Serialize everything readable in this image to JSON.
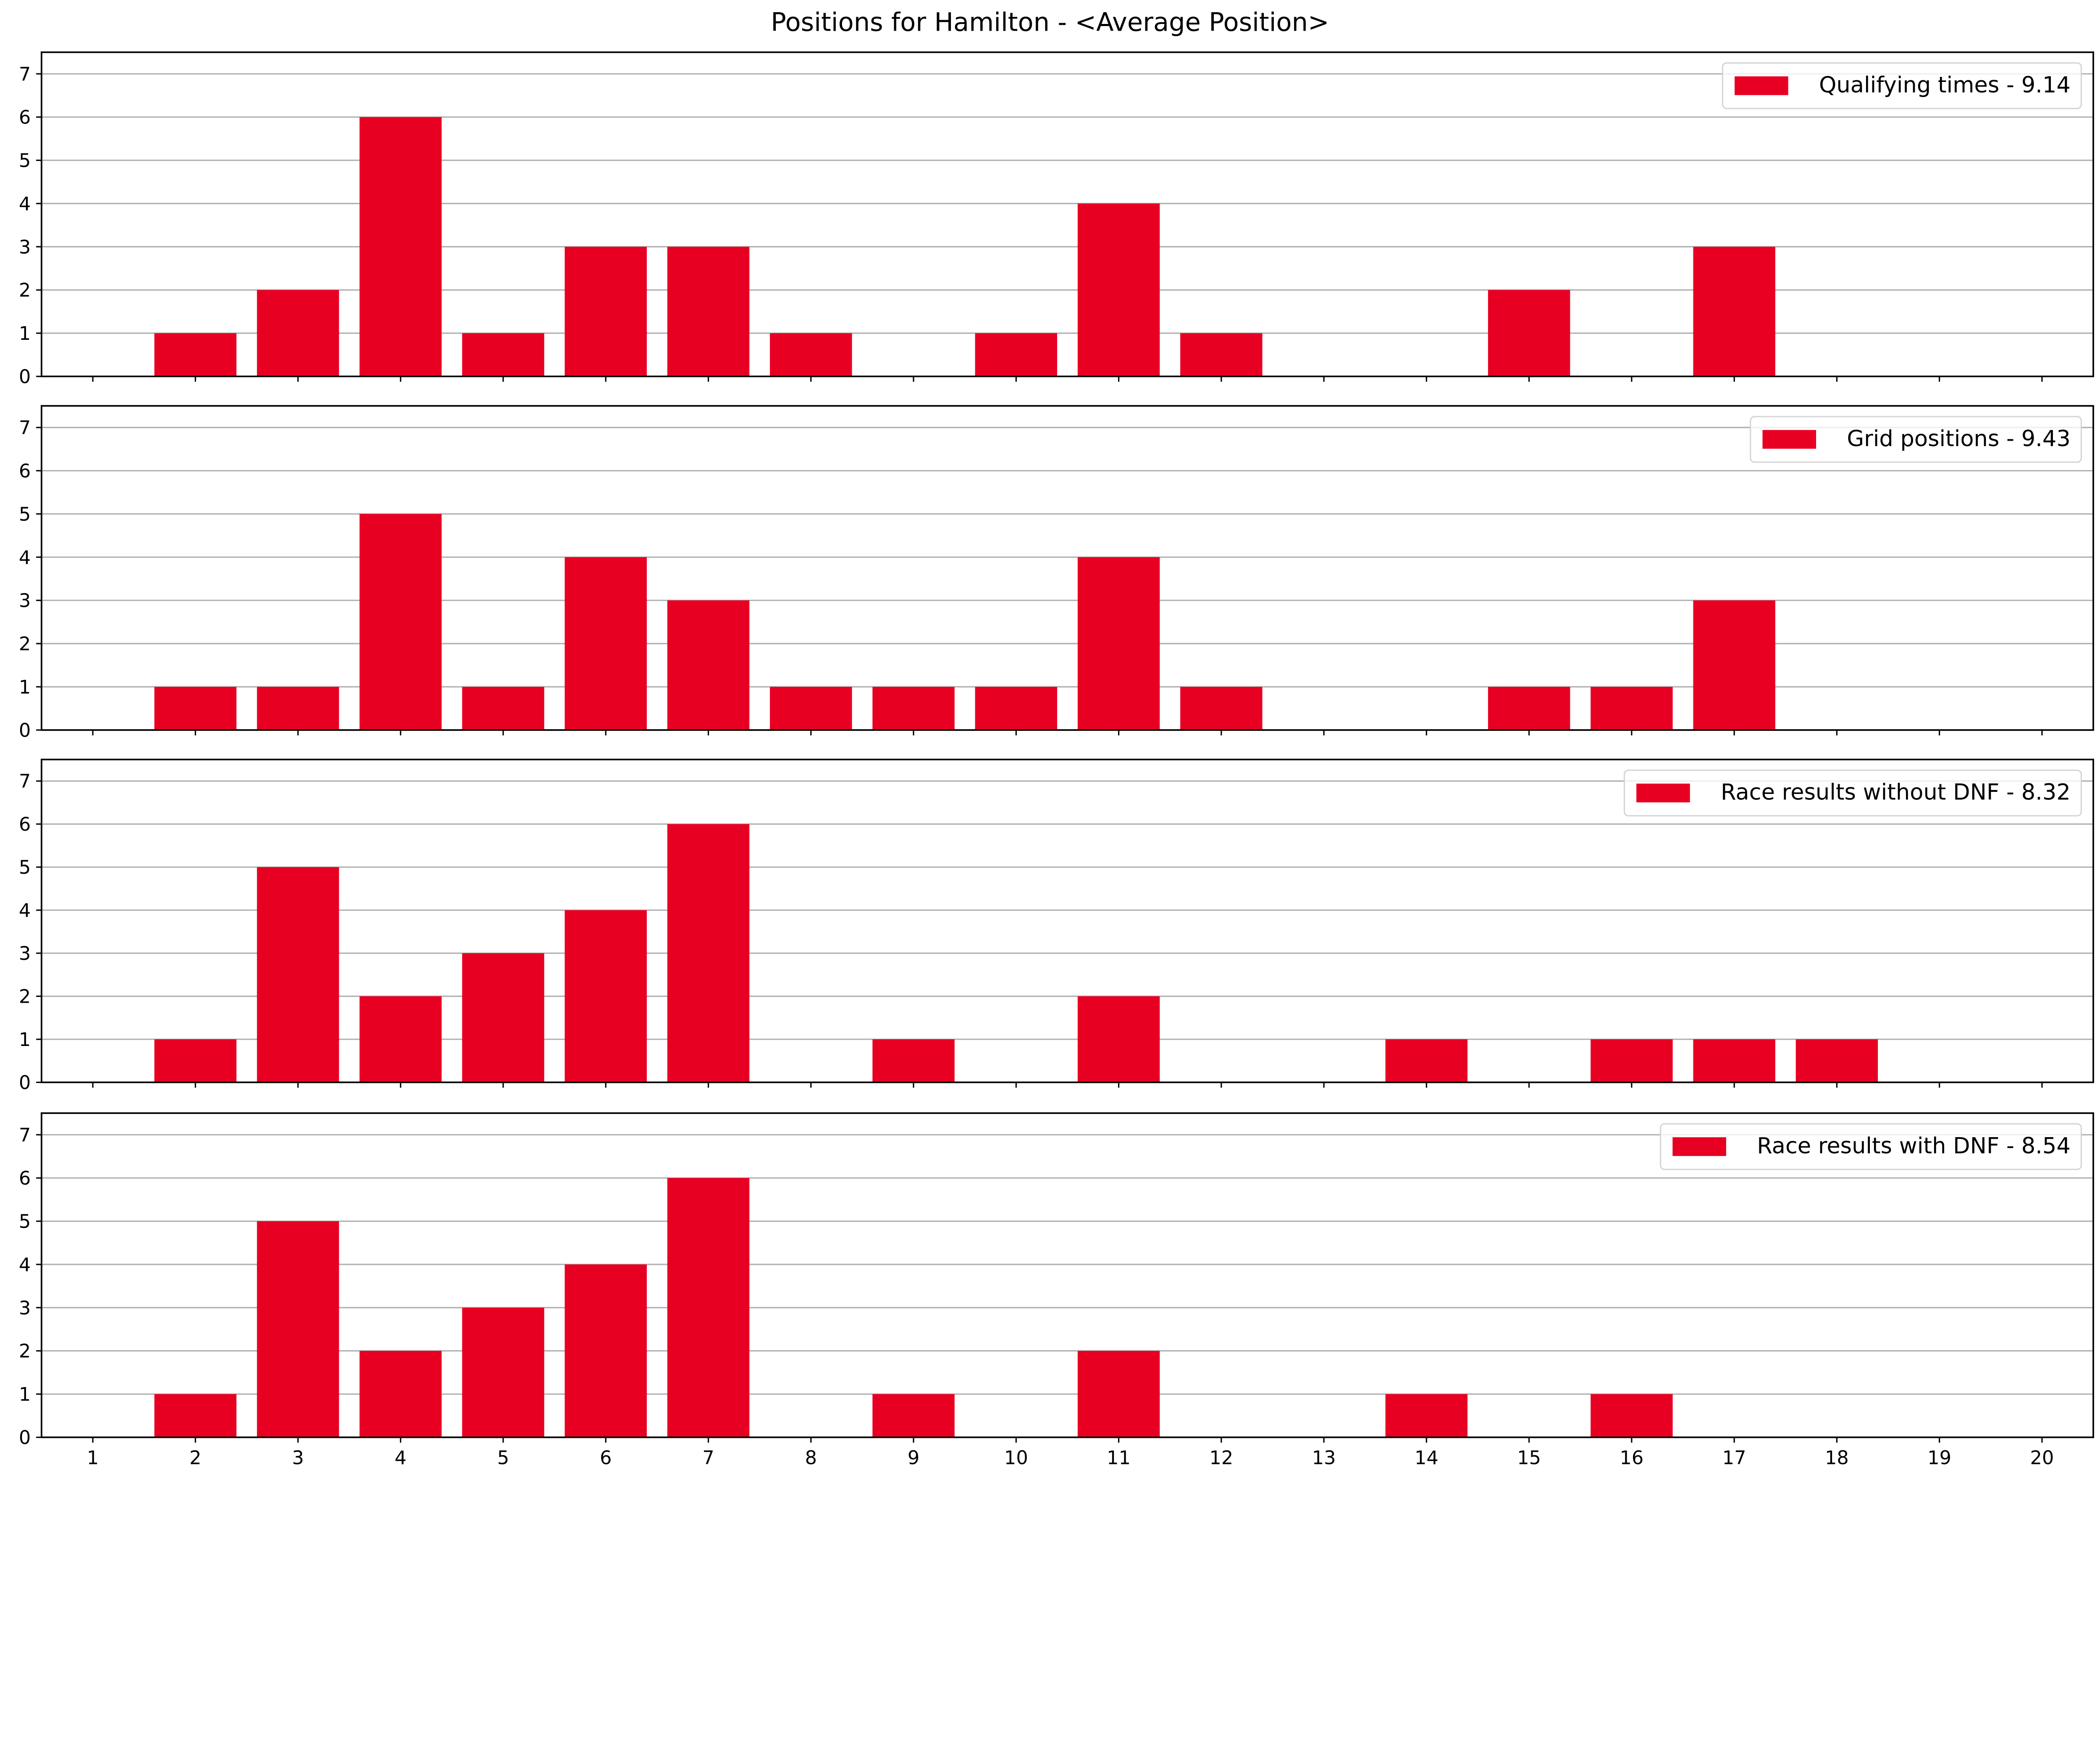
{
  "chart_data": {
    "type": "bar",
    "title": "Positions for Hamilton - <Average Position>",
    "bar_color": "#E80022",
    "grid": "horizontal",
    "legend_placement": "upper-right",
    "x": [
      1,
      2,
      3,
      4,
      5,
      6,
      7,
      8,
      9,
      10,
      11,
      12,
      13,
      14,
      15,
      16,
      17,
      18,
      19,
      20
    ],
    "xlim": [
      0.5,
      20.5
    ],
    "ylim": [
      0,
      7.5
    ],
    "yticks": [
      0,
      1,
      2,
      3,
      4,
      5,
      6,
      7
    ],
    "subplots": [
      {
        "name": "Qualifying times - 9.14",
        "values": [
          0,
          1,
          2,
          6,
          1,
          3,
          3,
          1,
          0,
          1,
          4,
          1,
          0,
          0,
          2,
          0,
          3,
          0,
          0,
          0
        ]
      },
      {
        "name": "Grid positions - 9.43",
        "values": [
          0,
          1,
          1,
          5,
          1,
          4,
          3,
          1,
          1,
          1,
          4,
          1,
          0,
          0,
          1,
          1,
          3,
          0,
          0,
          0
        ]
      },
      {
        "name": "Race results without DNF - 8.32",
        "values": [
          0,
          1,
          5,
          2,
          3,
          4,
          6,
          0,
          1,
          0,
          2,
          0,
          0,
          1,
          0,
          1,
          1,
          1,
          0,
          0
        ]
      },
      {
        "name": "Race results with DNF - 8.54",
        "values": [
          0,
          1,
          5,
          2,
          3,
          4,
          6,
          0,
          1,
          0,
          2,
          0,
          0,
          1,
          0,
          1,
          0,
          0,
          0,
          0
        ]
      }
    ]
  }
}
